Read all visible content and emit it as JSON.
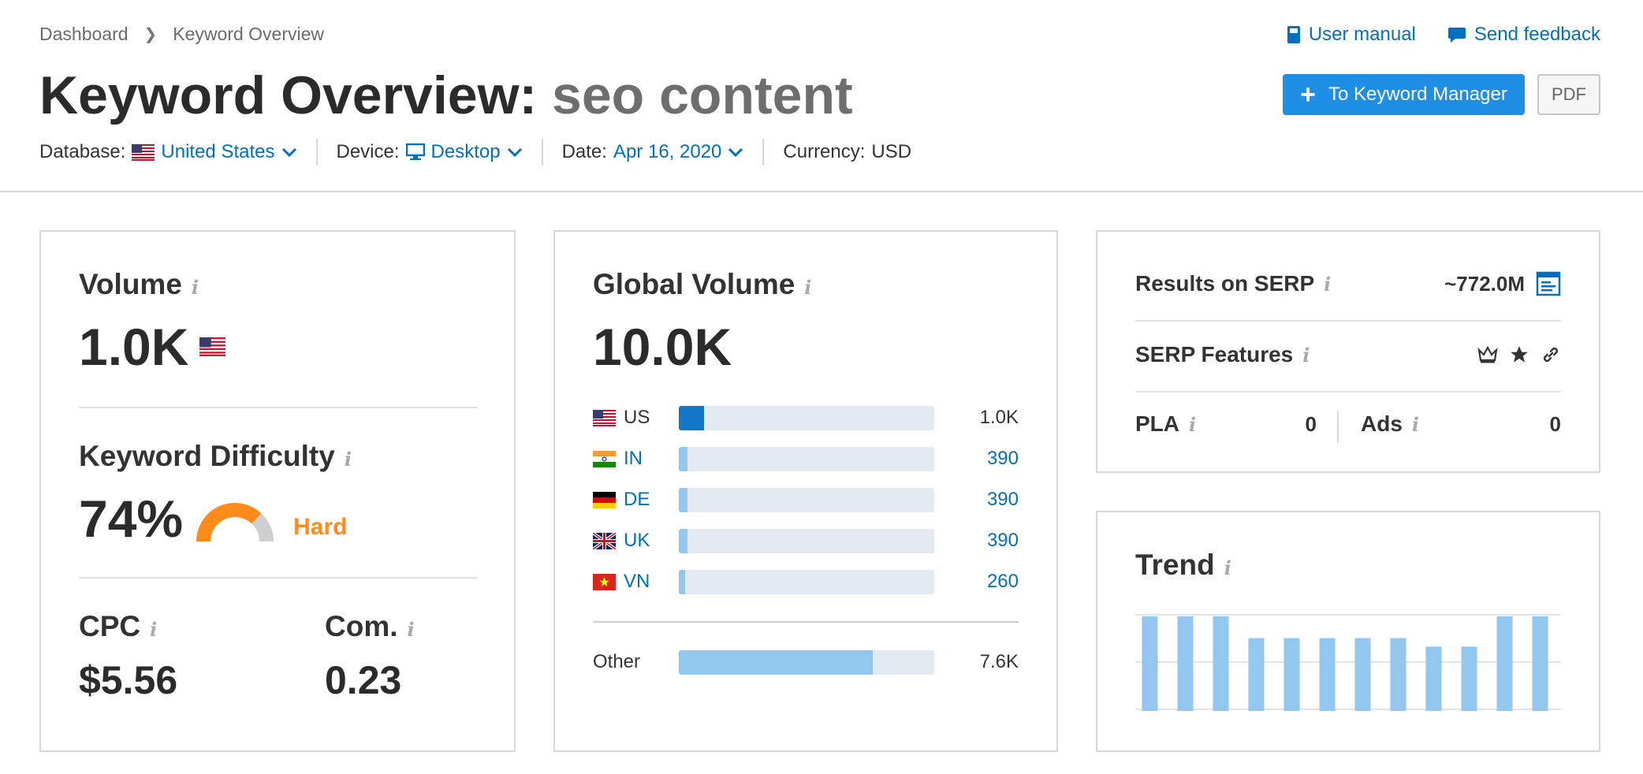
{
  "breadcrumb": {
    "home": "Dashboard",
    "current": "Keyword Overview"
  },
  "links": {
    "manual": "User manual",
    "feedback": "Send feedback"
  },
  "title": {
    "prefix": "Keyword Overview:",
    "keyword": "seo content"
  },
  "actions": {
    "keyword_manager": "To Keyword Manager",
    "pdf": "PDF"
  },
  "filters": {
    "database_label": "Database:",
    "database_value": "United States",
    "device_label": "Device:",
    "device_value": "Desktop",
    "date_label": "Date:",
    "date_value": "Apr 16, 2020",
    "currency_label": "Currency:",
    "currency_value": "USD"
  },
  "volume": {
    "label": "Volume",
    "value": "1.0K"
  },
  "difficulty": {
    "label": "Keyword Difficulty",
    "value": "74%",
    "level": "Hard",
    "percent": 74,
    "color": "#ff8c1a"
  },
  "cpc": {
    "label": "CPC",
    "value": "$5.56"
  },
  "competition": {
    "label": "Com.",
    "value": "0.23"
  },
  "global": {
    "label": "Global Volume",
    "value": "10.0K",
    "countries": [
      {
        "code": "US",
        "value": "1.0K",
        "share": 0.1,
        "link": false
      },
      {
        "code": "IN",
        "value": "390",
        "share": 0.035,
        "link": true
      },
      {
        "code": "DE",
        "value": "390",
        "share": 0.035,
        "link": true
      },
      {
        "code": "UK",
        "value": "390",
        "share": 0.035,
        "link": true
      },
      {
        "code": "VN",
        "value": "260",
        "share": 0.025,
        "link": true
      }
    ],
    "other": {
      "label": "Other",
      "value": "7.6K",
      "share": 0.76
    }
  },
  "serp": {
    "results_label": "Results on SERP",
    "results_value": "~772.0M",
    "features_label": "SERP Features",
    "features_icons": [
      "crown-icon",
      "star-icon",
      "link-icon"
    ],
    "pla_label": "PLA",
    "pla_value": "0",
    "ads_label": "Ads",
    "ads_value": "0"
  },
  "trend": {
    "label": "Trend",
    "values": [
      1.0,
      1.0,
      1.0,
      0.77,
      0.77,
      0.77,
      0.77,
      0.77,
      0.68,
      0.68,
      1.0,
      1.0
    ],
    "color": "#92c7ef"
  },
  "colors": {
    "accent": "#1f8fe5",
    "link": "#0071c2",
    "bar_primary": "#1478c8",
    "bar_light": "#92c7ef"
  }
}
